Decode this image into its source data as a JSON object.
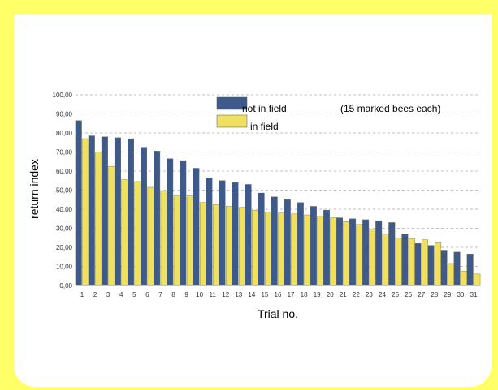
{
  "chart_data": {
    "type": "bar",
    "title": "",
    "xlabel": "Trial no.",
    "ylabel": "return index",
    "annotation": "(15 marked bees each)",
    "ylim": [
      0,
      100
    ],
    "yticks": [
      "0,00",
      "10,00",
      "20,00",
      "30,00",
      "40,00",
      "50,00",
      "60,00",
      "70,00",
      "80,00",
      "90,00",
      "100,00"
    ],
    "grid": true,
    "legend_position": "top-right",
    "categories": [
      "1",
      "2",
      "3",
      "4",
      "5",
      "6",
      "7",
      "8",
      "9",
      "10",
      "11",
      "12",
      "13",
      "14",
      "15",
      "16",
      "17",
      "18",
      "19",
      "20",
      "21",
      "22",
      "23",
      "24",
      "25",
      "26",
      "27",
      "28",
      "29",
      "30",
      "31"
    ],
    "series": [
      {
        "name": "not in field",
        "color": "#3d5a8a",
        "values": [
          86.5,
          78.5,
          78,
          77.5,
          77,
          72.5,
          70.5,
          66.5,
          65.5,
          61.5,
          56.5,
          55,
          54,
          53,
          48.5,
          46.5,
          45,
          43.5,
          41.5,
          39.5,
          35.5,
          35,
          34.5,
          34,
          33,
          27,
          22,
          21,
          18.5,
          17.5,
          16.5
        ]
      },
      {
        "name": "in field",
        "color": "#f0e060",
        "values": [
          77,
          70,
          62.5,
          55.5,
          54.5,
          51.5,
          49.5,
          47,
          47,
          43.5,
          42.5,
          41.5,
          41,
          39.5,
          38.5,
          38,
          37.5,
          37,
          36.5,
          35.5,
          33.5,
          32,
          29.5,
          27,
          25,
          24.5,
          24,
          22.5,
          11.5,
          7.5,
          6
        ]
      }
    ]
  }
}
